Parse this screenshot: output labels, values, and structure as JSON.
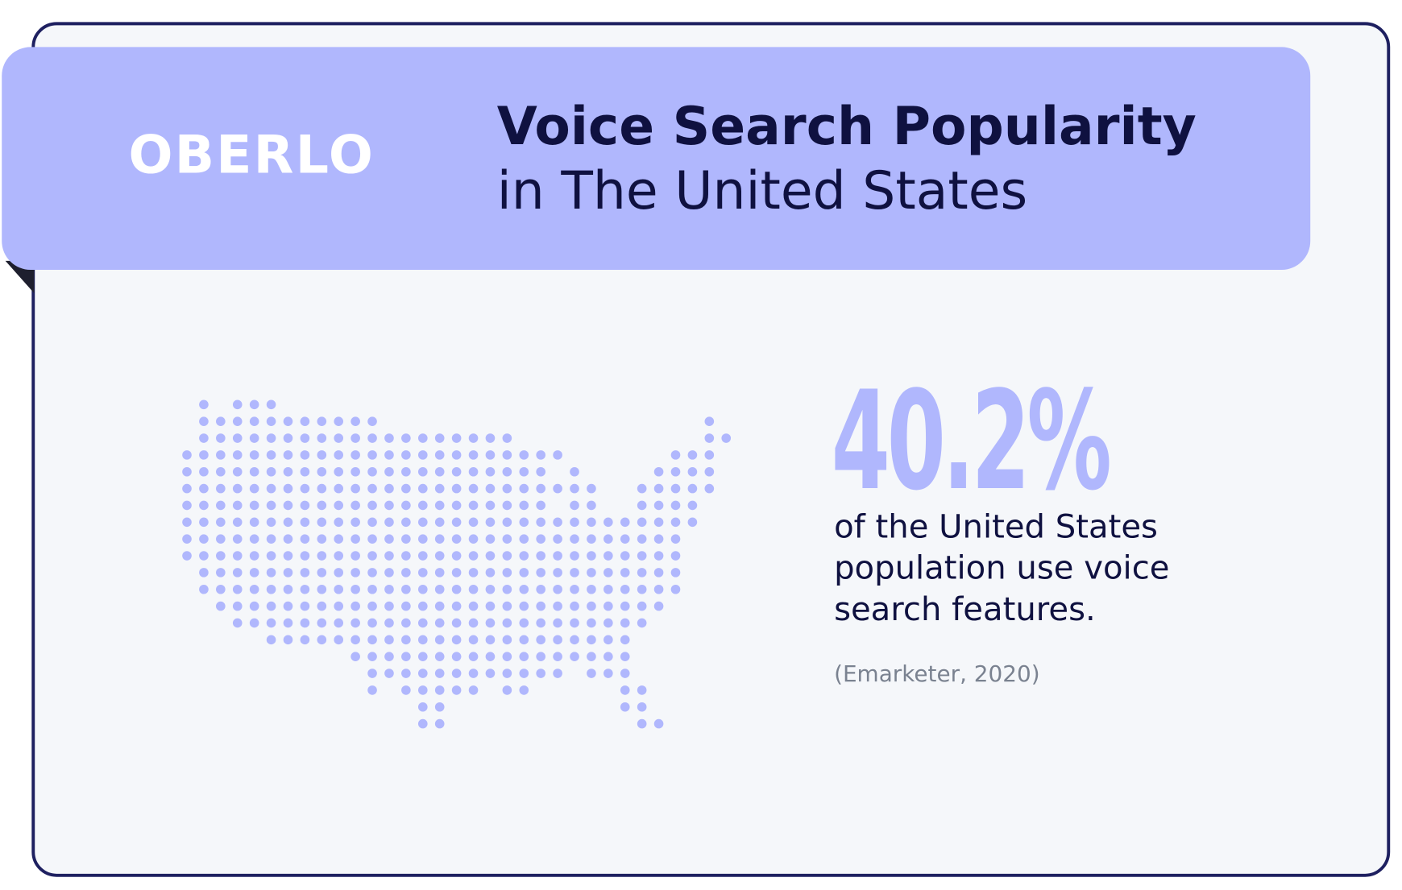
{
  "header": {
    "logo": "OBERLO",
    "title": "Voice Search Popularity",
    "subtitle": "in The United States"
  },
  "stat": {
    "value": "40.2%",
    "description": [
      "of the United States",
      "population use voice",
      "search features."
    ],
    "source": "(Emarketer, 2020)"
  }
}
